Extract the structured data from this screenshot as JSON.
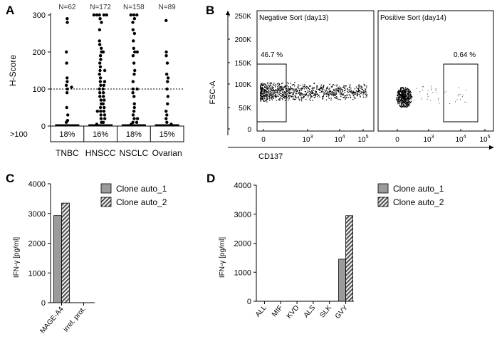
{
  "chart_data": [
    {
      "panel": "A",
      "type": "scatter",
      "ylabel": "H-Score",
      "ylim": [
        0,
        300
      ],
      "yticks": [
        0,
        100,
        200,
        300
      ],
      "threshold": 100,
      "threshold_label": ">100",
      "categories": [
        "TNBC",
        "HNSCC",
        "NSCLC",
        "Ovarian"
      ],
      "counts": [
        "N=62",
        "N=172",
        "N=158",
        "N=89"
      ],
      "percent_above": [
        "18%",
        "16%",
        "18%",
        "15%"
      ],
      "points": [
        [
          290,
          280,
          200,
          170,
          130,
          120,
          110,
          105,
          100,
          90,
          50,
          30,
          15,
          10
        ],
        [
          300,
          300,
          300,
          300,
          300,
          290,
          280,
          260,
          230,
          220,
          210,
          200,
          200,
          190,
          180,
          170,
          160,
          150,
          150,
          140,
          130,
          120,
          120,
          110,
          110,
          100,
          100,
          90,
          90,
          80,
          80,
          70,
          70,
          60,
          60,
          50,
          50,
          40,
          40,
          40,
          30,
          30,
          20,
          20,
          10,
          10,
          5
        ],
        [
          300,
          300,
          300,
          290,
          280,
          260,
          250,
          230,
          210,
          200,
          200,
          190,
          170,
          150,
          140,
          120,
          100,
          100,
          90,
          80,
          60,
          50,
          40,
          30,
          20,
          20,
          10,
          10,
          5
        ],
        [
          285,
          200,
          190,
          170,
          140,
          130,
          120,
          100,
          80,
          60,
          40,
          30,
          20,
          10,
          5
        ]
      ]
    },
    {
      "panel": "B",
      "type": "scatter",
      "ylabel": "FSC-A",
      "xlabel": "CD137",
      "yticks": [
        "0",
        "50K",
        "100K",
        "150K",
        "200K",
        "250K"
      ],
      "xticks": [
        "0",
        "10^3",
        "10^4",
        "10^5"
      ],
      "subplots": [
        {
          "title": "Negative Sort (day13)",
          "gate_percent": "46.7 %"
        },
        {
          "title": "Positive Sort (day14)",
          "gate_percent": "0.64 %"
        }
      ]
    },
    {
      "panel": "C",
      "type": "bar",
      "ylabel": "IFN-γ [pg/ml]",
      "ylim": [
        0,
        4000
      ],
      "yticks": [
        0,
        1000,
        2000,
        3000,
        4000
      ],
      "categories": [
        "MAGE-A4",
        "irrel. prot."
      ],
      "series": [
        {
          "name": "Clone auto_1",
          "values": [
            2930,
            0
          ]
        },
        {
          "name": "Clone auto_2",
          "values": [
            3350,
            0
          ]
        }
      ]
    },
    {
      "panel": "D",
      "type": "bar",
      "ylabel": "IFN-γ [pg/ml]",
      "ylim": [
        0,
        4000
      ],
      "yticks": [
        0,
        1000,
        2000,
        3000,
        4000
      ],
      "categories": [
        "ALL",
        "MIF",
        "KVD",
        "ALS",
        "SLK",
        "GVY"
      ],
      "series": [
        {
          "name": "Clone auto_1",
          "values": [
            0,
            0,
            0,
            0,
            0,
            1450
          ]
        },
        {
          "name": "Clone auto_2",
          "values": [
            0,
            0,
            0,
            0,
            0,
            2950
          ]
        }
      ]
    }
  ],
  "colors": {
    "solid_bar": "#9b9b9b",
    "hatched_bar": "#777777",
    "axis": "#000000"
  }
}
